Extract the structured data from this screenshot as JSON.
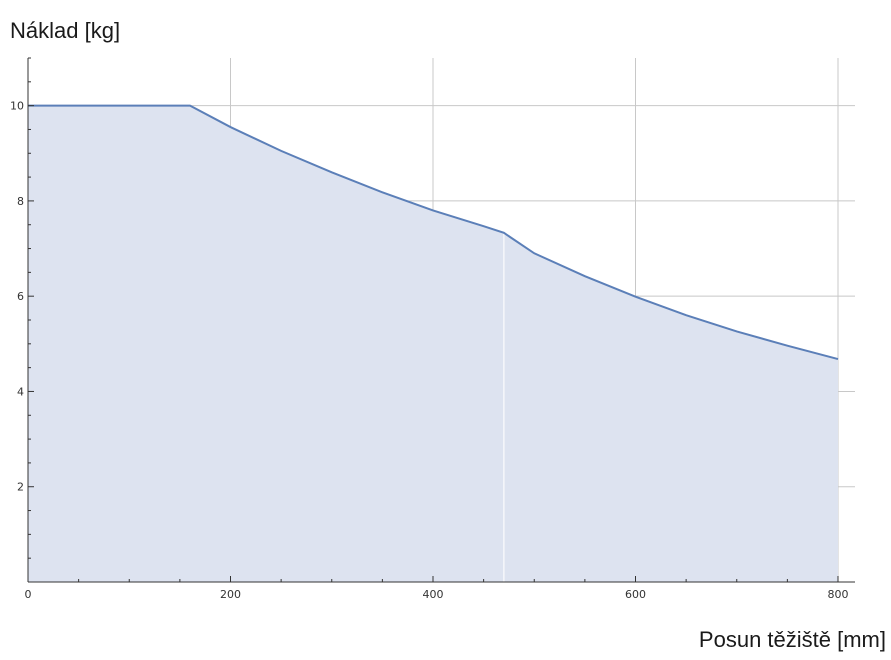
{
  "chart_data": {
    "type": "area",
    "title": "",
    "ylabel": "Náklad [kg]",
    "xlabel": "Posun těžiště [mm]",
    "xlim": [
      0,
      800
    ],
    "ylim": [
      0,
      11
    ],
    "x_ticks": [
      0,
      200,
      400,
      600,
      800
    ],
    "y_ticks": [
      2,
      4,
      6,
      8,
      10
    ],
    "x_tick_labels": [
      "0",
      "200",
      "400",
      "600",
      "800"
    ],
    "y_tick_labels": [
      "2",
      "4",
      "6",
      "8",
      "10"
    ],
    "grid": true,
    "series": [
      {
        "x": [
          0,
          160,
          200,
          250,
          300,
          350,
          400,
          450,
          470,
          500,
          550,
          600,
          650,
          700,
          750,
          800
        ],
        "y": [
          10,
          10,
          9.55,
          9.05,
          8.6,
          8.18,
          7.8,
          7.47,
          7.33,
          6.9,
          6.42,
          5.99,
          5.6,
          5.26,
          4.96,
          4.68
        ]
      }
    ],
    "colors": {
      "line": "#5b7fb8",
      "fill": "#dde3f0",
      "grid": "#c8c8c8",
      "axis": "#333333"
    }
  }
}
